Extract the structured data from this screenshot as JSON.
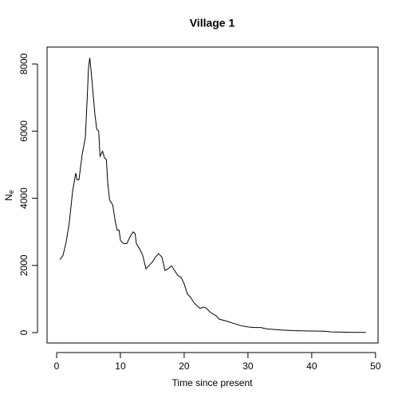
{
  "chart_data": {
    "type": "line",
    "title": "Village 1",
    "x_label": "Time since present",
    "y_label": "N",
    "y_label_subscript": "e",
    "x": [
      0.5,
      1,
      1.5,
      2,
      2.5,
      3,
      3.2,
      3.5,
      4,
      4.5,
      4.8,
      5,
      5.2,
      5.5,
      6,
      6.3,
      6.6,
      6.8,
      7.2,
      7.5,
      7.8,
      8,
      8.3,
      8.8,
      9.2,
      9.5,
      9.8,
      10,
      10.5,
      11,
      11.5,
      12,
      12.3,
      12.5,
      13,
      13.5,
      14,
      14.5,
      15,
      15.5,
      16,
      16.5,
      17,
      17.5,
      18,
      18.5,
      19,
      19.5,
      20,
      20.5,
      21,
      21.5,
      22,
      22.5,
      23,
      23.5,
      24,
      25,
      25.5,
      26.5,
      28,
      29,
      30,
      31,
      32,
      33,
      35,
      37,
      39,
      42,
      43,
      46,
      48.5
    ],
    "series": [
      {
        "name": "Ne",
        "color": "#000000",
        "values": [
          2170,
          2300,
          2700,
          3300,
          4200,
          4750,
          4550,
          4550,
          5300,
          5800,
          7000,
          7900,
          8180,
          7600,
          6500,
          6050,
          6000,
          5250,
          5400,
          5200,
          5150,
          4500,
          3950,
          3800,
          3300,
          3050,
          3050,
          2750,
          2650,
          2650,
          2850,
          3000,
          2950,
          2650,
          2500,
          2300,
          1900,
          2000,
          2100,
          2250,
          2350,
          2250,
          1850,
          1900,
          1990,
          1850,
          1700,
          1650,
          1450,
          1150,
          1050,
          900,
          800,
          720,
          760,
          730,
          620,
          500,
          400,
          350,
          260,
          200,
          170,
          150,
          150,
          110,
          80,
          60,
          50,
          40,
          20,
          10,
          5
        ]
      }
    ],
    "xlim": [
      -1.5,
      50.4
    ],
    "ylim": [
      -309,
      8503
    ],
    "xticks": [
      0,
      10,
      20,
      30,
      40,
      50
    ],
    "yticks": [
      0,
      2000,
      4000,
      6000,
      8000
    ]
  }
}
